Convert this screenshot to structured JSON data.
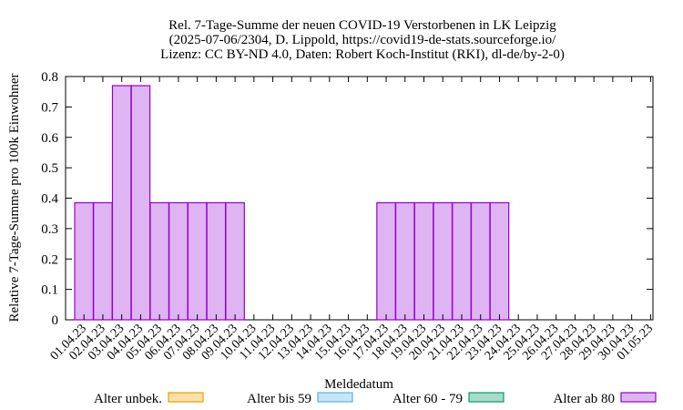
{
  "chart_data": {
    "type": "bar",
    "title_lines": [
      "Rel. 7-Tage-Summe der neuen COVID-19 Verstorbenen in LK Leipzig",
      "(2025-07-06/2304, D. Lippold, https://covid19-de-stats.sourceforge.io/",
      "Lizenz: CC BY-ND 4.0, Daten: Robert Koch-Institut (RKI), dl-de/by-2-0)"
    ],
    "xlabel": "Meldedatum",
    "ylabel": "Relative 7-Tage-Summe pro 100k Einwohner",
    "ylim": [
      0,
      0.8
    ],
    "yticks": [
      "0",
      "0.1",
      "0.2",
      "0.3",
      "0.4",
      "0.5",
      "0.6",
      "0.7",
      "0.8"
    ],
    "categories": [
      "01.04.23",
      "02.04.23",
      "03.04.23",
      "04.04.23",
      "05.04.23",
      "06.04.23",
      "07.04.23",
      "08.04.23",
      "09.04.23",
      "10.04.23",
      "11.04.23",
      "12.04.23",
      "13.04.23",
      "14.04.23",
      "15.04.23",
      "16.04.23",
      "17.04.23",
      "18.04.23",
      "19.04.23",
      "20.04.23",
      "21.04.23",
      "22.04.23",
      "23.04.23",
      "24.04.23",
      "25.04.23",
      "26.04.23",
      "27.04.23",
      "28.04.23",
      "29.04.23",
      "30.04.23",
      "01.05.23"
    ],
    "series": [
      {
        "name": "Alter unbek.",
        "fill": "#fbe0a8",
        "stroke": "#e69f00",
        "values": [
          0,
          0,
          0,
          0,
          0,
          0,
          0,
          0,
          0,
          0,
          0,
          0,
          0,
          0,
          0,
          0,
          0,
          0,
          0,
          0,
          0,
          0,
          0,
          0,
          0,
          0,
          0,
          0,
          0,
          0,
          0
        ]
      },
      {
        "name": "Alter bis 59",
        "fill": "#c6e6f7",
        "stroke": "#56b4e9",
        "values": [
          0,
          0,
          0,
          0,
          0,
          0,
          0,
          0,
          0,
          0,
          0,
          0,
          0,
          0,
          0,
          0,
          0,
          0,
          0,
          0,
          0,
          0,
          0,
          0,
          0,
          0,
          0,
          0,
          0,
          0,
          0
        ]
      },
      {
        "name": "Alter 60 - 79",
        "fill": "#a6dcc8",
        "stroke": "#009e73",
        "values": [
          0,
          0,
          0,
          0,
          0,
          0,
          0,
          0,
          0,
          0,
          0,
          0,
          0,
          0,
          0,
          0,
          0,
          0,
          0,
          0,
          0,
          0,
          0,
          0,
          0,
          0,
          0,
          0,
          0,
          0,
          0
        ]
      },
      {
        "name": "Alter ab 80",
        "fill": "#dfb4f2",
        "stroke": "#9400d3",
        "values": [
          0.385,
          0.385,
          0.77,
          0.77,
          0.385,
          0.385,
          0.385,
          0.385,
          0.385,
          0,
          0,
          0,
          0,
          0,
          0,
          0,
          0.385,
          0.385,
          0.385,
          0.385,
          0.385,
          0.385,
          0.385,
          0,
          0,
          0,
          0,
          0,
          0,
          0,
          0
        ]
      }
    ],
    "legend_position": "bottom",
    "grid": false
  }
}
